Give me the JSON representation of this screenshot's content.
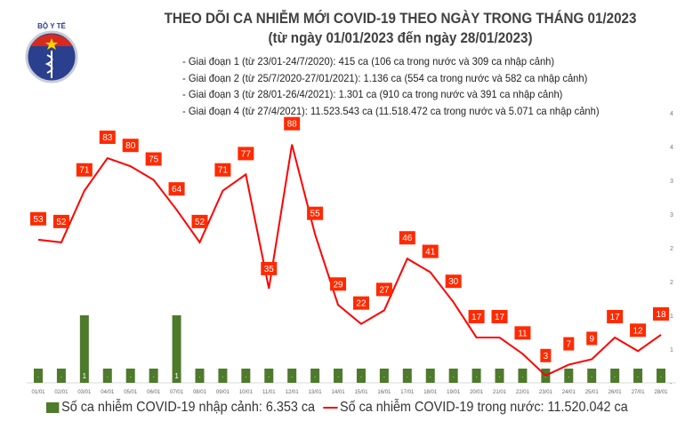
{
  "header": {
    "title": "THEO DÕI CA NHIỄM MỚI COVID-19 THEO NGÀY TRONG THÁNG 01/2023",
    "subtitle": "(từ ngày 01/01/2023 đến ngày 28/01/2023)",
    "logo_text": "BỘ Y TẾ MINISTRY OF HEALTH"
  },
  "notes": [
    "- Giai đoạn 1 (từ 23/01-24/7/2020): 415 ca (106 ca trong nước và 309 ca nhập cảnh)",
    "- Giai đoạn 2 (từ 25/7/2020-27/01/2021): 1.136 ca (554 ca trong nước và 582 ca nhập cảnh)",
    "- Giai đoạn 3 (từ 28/01-26/4/2021): 1.301 ca (910 ca trong nước và 391 ca nhập cảnh)",
    "- Giai đoạn 4 (từ 27/4/2021): 11.523.543 ca (11.518.472 ca trong nước và 5.071 ca nhập cảnh)"
  ],
  "chart_data": {
    "type": "bar+line",
    "categories": [
      "01/01",
      "02/01",
      "03/01",
      "04/01",
      "05/01",
      "06/01",
      "07/01",
      "08/01",
      "09/01",
      "10/01",
      "11/01",
      "12/01",
      "13/01",
      "14/01",
      "15/01",
      "16/01",
      "17/01",
      "18/01",
      "19/01",
      "20/01",
      "21/01",
      "22/01",
      "23/01",
      "24/01",
      "25/01",
      "26/01",
      "27/01",
      "28/01"
    ],
    "series": [
      {
        "name": "Số ca nhiễm COVID-19 nhập cảnh: 6.353 ca",
        "type": "bar",
        "color": "#4e7a2c",
        "values": [
          0,
          0,
          1,
          0,
          0,
          0,
          1,
          0,
          0,
          0,
          0,
          0,
          0,
          0,
          0,
          0,
          0,
          0,
          0,
          0,
          0,
          0,
          0,
          0,
          0,
          0,
          0,
          0
        ]
      },
      {
        "name": "Số ca nhiễm COVID-19 trong nước: 11.520.042 ca",
        "type": "line",
        "color": "#ff0000",
        "values": [
          53,
          52,
          71,
          83,
          80,
          75,
          64,
          52,
          71,
          77,
          35,
          88,
          55,
          29,
          22,
          27,
          46,
          41,
          30,
          17,
          17,
          11,
          3,
          7,
          9,
          17,
          12,
          18
        ]
      }
    ],
    "right_axis": {
      "ylim": [
        0,
        4.5
      ],
      "tick_labels": [
        "4",
        "4",
        "3",
        "3",
        "2",
        "2",
        "1",
        "1",
        "-"
      ]
    },
    "label_color": "#ff2a00"
  }
}
